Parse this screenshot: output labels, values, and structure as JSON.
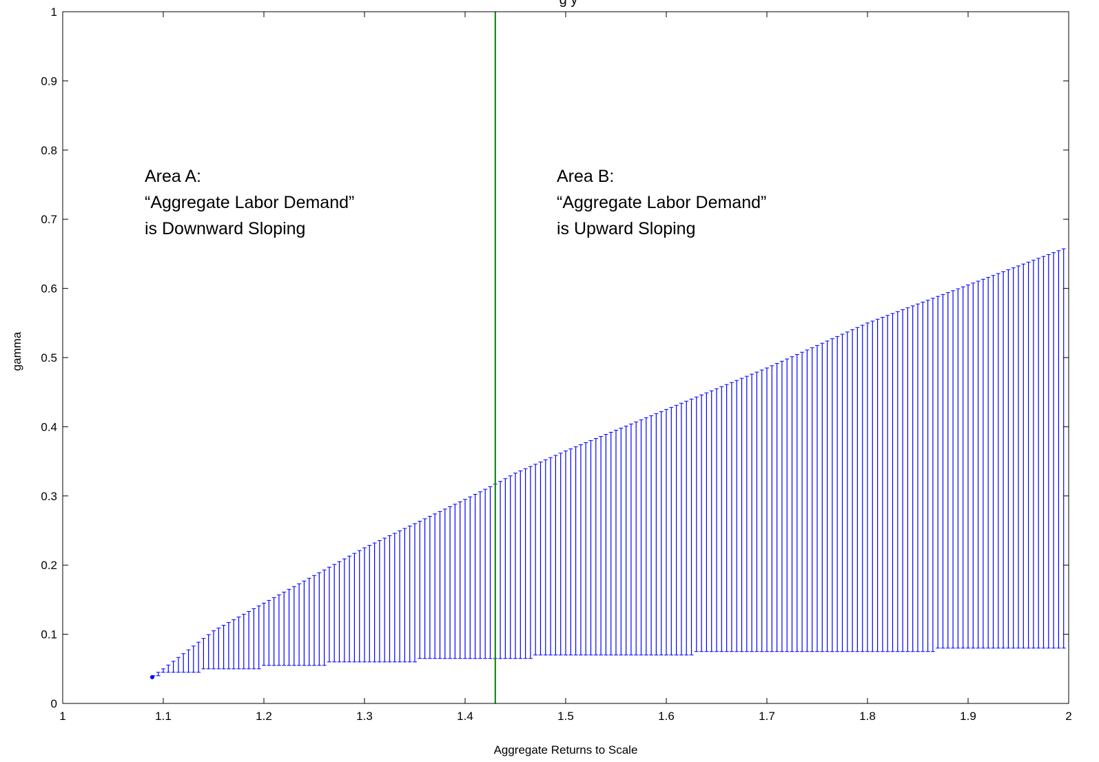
{
  "chart_data": {
    "type": "bar",
    "subtype": "vertical-range-lines",
    "title": "g                                               y",
    "xlabel": "Aggregate Returns to Scale",
    "ylabel": "gamma",
    "xlim": [
      1,
      2
    ],
    "ylim": [
      0,
      1
    ],
    "xticks": [
      "1",
      "1.1",
      "1.2",
      "1.3",
      "1.4",
      "1.5",
      "1.6",
      "1.7",
      "1.8",
      "1.9",
      "2"
    ],
    "yticks": [
      "0",
      "0.1",
      "0.2",
      "0.3",
      "0.4",
      "0.5",
      "0.6",
      "0.7",
      "0.8",
      "0.9",
      "1"
    ],
    "grid": false,
    "series": [
      {
        "kind": "vertical-ranges",
        "color": "#0000ff",
        "x_start": 1.09,
        "x_end": 1.995,
        "x_step": 0.005,
        "upper_curve": [
          [
            1.09,
            0.04
          ],
          [
            1.1,
            0.05
          ],
          [
            1.15,
            0.105
          ],
          [
            1.2,
            0.145
          ],
          [
            1.25,
            0.185
          ],
          [
            1.3,
            0.225
          ],
          [
            1.35,
            0.26
          ],
          [
            1.4,
            0.295
          ],
          [
            1.43,
            0.317
          ],
          [
            1.45,
            0.333
          ],
          [
            1.5,
            0.365
          ],
          [
            1.6,
            0.425
          ],
          [
            1.7,
            0.485
          ],
          [
            1.8,
            0.55
          ],
          [
            1.9,
            0.605
          ],
          [
            2.0,
            0.66
          ]
        ],
        "lower_steps": [
          [
            1.09,
            0.04
          ],
          [
            1.096,
            0.045
          ],
          [
            1.14,
            0.05
          ],
          [
            1.2,
            0.055
          ],
          [
            1.265,
            0.06
          ],
          [
            1.355,
            0.065
          ],
          [
            1.47,
            0.07
          ],
          [
            1.63,
            0.075
          ],
          [
            1.87,
            0.08
          ]
        ],
        "start_marker": [
          1.089,
          0.038
        ]
      }
    ],
    "reference_line": {
      "x": 1.43,
      "color": "#008000"
    },
    "annotations": [
      {
        "lines": [
          "Area A:",
          "“Aggregate Labor Demand”",
          "is Downward Sloping"
        ],
        "x": 1.25,
        "y": 0.76
      },
      {
        "lines": [
          "Area B:",
          "“Aggregate Labor Demand”",
          "is Upward Sloping"
        ],
        "x": 1.655,
        "y": 0.76
      }
    ]
  }
}
